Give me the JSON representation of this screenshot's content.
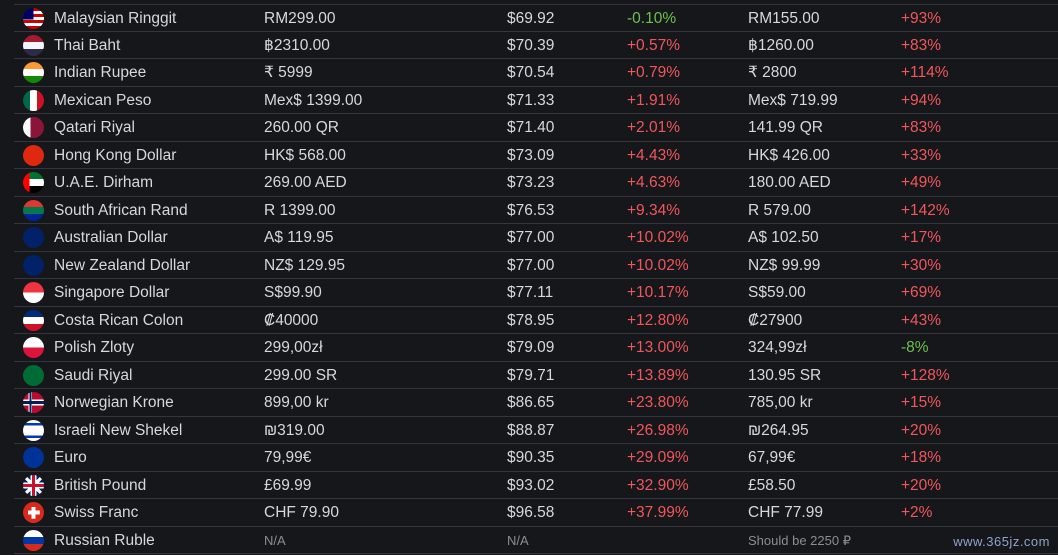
{
  "rows": [
    {
      "flag": "malaysia",
      "colors": [
        "#cc0001",
        "#ffffff",
        "#010066"
      ],
      "name": "Malaysian Ringgit",
      "price": "RM299.00",
      "usd": "$69.92",
      "diff": "-0.10%",
      "diff_sign": "neg",
      "price2": "RM155.00",
      "diff2": "+93%",
      "diff2_sign": "pos"
    },
    {
      "flag": "thailand",
      "colors": [
        "#a51931",
        "#f4f5f8",
        "#2d2a4a"
      ],
      "name": "Thai Baht",
      "price": "฿2310.00",
      "usd": "$70.39",
      "diff": "+0.57%",
      "diff_sign": "pos",
      "price2": "฿1260.00",
      "diff2": "+83%",
      "diff2_sign": "pos"
    },
    {
      "flag": "india",
      "colors": [
        "#ff9933",
        "#ffffff",
        "#138808"
      ],
      "name": "Indian Rupee",
      "price": "₹ 5999",
      "usd": "$70.54",
      "diff": "+0.79%",
      "diff_sign": "pos",
      "price2": "₹ 2800",
      "diff2": "+114%",
      "diff2_sign": "pos"
    },
    {
      "flag": "mexico",
      "colors": [
        "#006847",
        "#ffffff",
        "#ce1126"
      ],
      "name": "Mexican Peso",
      "price": "Mex$ 1399.00",
      "usd": "$71.33",
      "diff": "+1.91%",
      "diff_sign": "pos",
      "price2": "Mex$ 719.99",
      "diff2": "+94%",
      "diff2_sign": "pos"
    },
    {
      "flag": "qatar",
      "colors": [
        "#ffffff",
        "#8a1538",
        "#8a1538"
      ],
      "name": "Qatari Riyal",
      "price": "260.00 QR",
      "usd": "$71.40",
      "diff": "+2.01%",
      "diff_sign": "pos",
      "price2": "141.99 QR",
      "diff2": "+83%",
      "diff2_sign": "pos"
    },
    {
      "flag": "hongkong",
      "colors": [
        "#de2910",
        "#de2910",
        "#de2910"
      ],
      "name": "Hong Kong Dollar",
      "price": "HK$ 568.00",
      "usd": "$73.09",
      "diff": "+4.43%",
      "diff_sign": "pos",
      "price2": "HK$ 426.00",
      "diff2": "+33%",
      "diff2_sign": "pos"
    },
    {
      "flag": "uae",
      "colors": [
        "#00732f",
        "#ffffff",
        "#000000"
      ],
      "name": "U.A.E. Dirham",
      "price": "269.00 AED",
      "usd": "$73.23",
      "diff": "+4.63%",
      "diff_sign": "pos",
      "price2": "180.00 AED",
      "diff2": "+49%",
      "diff2_sign": "pos"
    },
    {
      "flag": "southafrica",
      "colors": [
        "#007a4d",
        "#ffb612",
        "#de3831"
      ],
      "name": "South African Rand",
      "price": "R 1399.00",
      "usd": "$76.53",
      "diff": "+9.34%",
      "diff_sign": "pos",
      "price2": "R 579.00",
      "diff2": "+142%",
      "diff2_sign": "pos"
    },
    {
      "flag": "australia",
      "colors": [
        "#012169",
        "#012169",
        "#012169"
      ],
      "name": "Australian Dollar",
      "price": "A$ 119.95",
      "usd": "$77.00",
      "diff": "+10.02%",
      "diff_sign": "pos",
      "price2": "A$ 102.50",
      "diff2": "+17%",
      "diff2_sign": "pos"
    },
    {
      "flag": "newzealand",
      "colors": [
        "#012169",
        "#012169",
        "#012169"
      ],
      "name": "New Zealand Dollar",
      "price": "NZ$ 129.95",
      "usd": "$77.00",
      "diff": "+10.02%",
      "diff_sign": "pos",
      "price2": "NZ$ 99.99",
      "diff2": "+30%",
      "diff2_sign": "pos"
    },
    {
      "flag": "singapore",
      "colors": [
        "#ef3340",
        "#ffffff",
        "#ffffff"
      ],
      "name": "Singapore Dollar",
      "price": "S$99.90",
      "usd": "$77.11",
      "diff": "+10.17%",
      "diff_sign": "pos",
      "price2": "S$59.00",
      "diff2": "+69%",
      "diff2_sign": "pos"
    },
    {
      "flag": "costarica",
      "colors": [
        "#002b7f",
        "#ffffff",
        "#ce1126"
      ],
      "name": "Costa Rican Colon",
      "price": "₡40000",
      "usd": "$78.95",
      "diff": "+12.80%",
      "diff_sign": "pos",
      "price2": "₡27900",
      "diff2": "+43%",
      "diff2_sign": "pos"
    },
    {
      "flag": "poland",
      "colors": [
        "#ffffff",
        "#dc143c",
        "#dc143c"
      ],
      "name": "Polish Zloty",
      "price": "299,00zł",
      "usd": "$79.09",
      "diff": "+13.00%",
      "diff_sign": "pos",
      "price2": "324,99zł",
      "diff2": "-8%",
      "diff2_sign": "neg"
    },
    {
      "flag": "saudi",
      "colors": [
        "#006c35",
        "#006c35",
        "#006c35"
      ],
      "name": "Saudi Riyal",
      "price": "299.00 SR",
      "usd": "$79.71",
      "diff": "+13.89%",
      "diff_sign": "pos",
      "price2": "130.95 SR",
      "diff2": "+128%",
      "diff2_sign": "pos"
    },
    {
      "flag": "norway",
      "colors": [
        "#ba0c2f",
        "#ffffff",
        "#00205b"
      ],
      "name": "Norwegian Krone",
      "price": "899,00 kr",
      "usd": "$86.65",
      "diff": "+23.80%",
      "diff_sign": "pos",
      "price2": "785,00 kr",
      "diff2": "+15%",
      "diff2_sign": "pos"
    },
    {
      "flag": "israel",
      "colors": [
        "#ffffff",
        "#0038b8",
        "#ffffff"
      ],
      "name": "Israeli New Shekel",
      "price": "₪319.00",
      "usd": "$88.87",
      "diff": "+26.98%",
      "diff_sign": "pos",
      "price2": "₪264.95",
      "diff2": "+20%",
      "diff2_sign": "pos"
    },
    {
      "flag": "eu",
      "colors": [
        "#003399",
        "#003399",
        "#003399"
      ],
      "name": "Euro",
      "price": "79,99€",
      "usd": "$90.35",
      "diff": "+29.09%",
      "diff_sign": "pos",
      "price2": "67,99€",
      "diff2": "+18%",
      "diff2_sign": "pos"
    },
    {
      "flag": "uk",
      "colors": [
        "#012169",
        "#ffffff",
        "#c8102e"
      ],
      "name": "British Pound",
      "price": "£69.99",
      "usd": "$93.02",
      "diff": "+32.90%",
      "diff_sign": "pos",
      "price2": "£58.50",
      "diff2": "+20%",
      "diff2_sign": "pos"
    },
    {
      "flag": "switzerland",
      "colors": [
        "#da291c",
        "#da291c",
        "#da291c"
      ],
      "name": "Swiss Franc",
      "price": "CHF 79.90",
      "usd": "$96.58",
      "diff": "+37.99%",
      "diff_sign": "pos",
      "price2": "CHF 77.99",
      "diff2": "+2%",
      "diff2_sign": "pos"
    },
    {
      "flag": "russia",
      "colors": [
        "#ffffff",
        "#0039a6",
        "#d52b1e"
      ],
      "name": "Russian Ruble",
      "price": "N/A",
      "usd": "N/A",
      "diff": "",
      "diff_sign": "na",
      "price2": "Should be 2250 ₽",
      "diff2": "",
      "diff2_sign": "na"
    }
  ],
  "watermark": "www.365jz.com"
}
